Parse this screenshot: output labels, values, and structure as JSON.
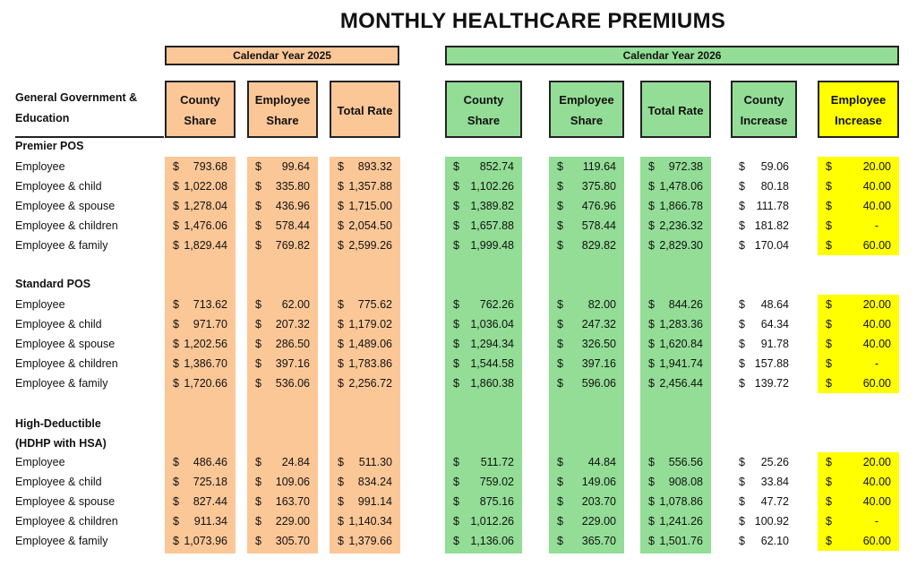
{
  "title": "MONTHLY HEALTHCARE PREMIUMS",
  "year_2025": "Calendar Year 2025",
  "year_2026": "Calendar Year 2026",
  "row_header": "General Government & Education",
  "columns": [
    "County Share",
    "Employee Share",
    "Total Rate",
    "County Share",
    "Employee Share",
    "Total Rate",
    "County Increase",
    "Employee Increase"
  ],
  "currency_symbol": "$",
  "colors": {
    "orange": "#fbc797",
    "green": "#93dd96",
    "yellow": "#ffff00"
  },
  "sections": [
    {
      "name": "Premier POS",
      "rows": [
        {
          "label": "Employee",
          "values": [
            "793.68",
            "99.64",
            "893.32",
            "852.74",
            "119.64",
            "972.38",
            "59.06",
            "20.00"
          ]
        },
        {
          "label": "Employee & child",
          "values": [
            "1,022.08",
            "335.80",
            "1,357.88",
            "1,102.26",
            "375.80",
            "1,478.06",
            "80.18",
            "40.00"
          ]
        },
        {
          "label": "Employee & spouse",
          "values": [
            "1,278.04",
            "436.96",
            "1,715.00",
            "1,389.82",
            "476.96",
            "1,866.78",
            "111.78",
            "40.00"
          ]
        },
        {
          "label": "Employee & children",
          "values": [
            "1,476.06",
            "578.44",
            "2,054.50",
            "1,657.88",
            "578.44",
            "2,236.32",
            "181.82",
            "-"
          ]
        },
        {
          "label": "Employee & family",
          "values": [
            "1,829.44",
            "769.82",
            "2,599.26",
            "1,999.48",
            "829.82",
            "2,829.30",
            "170.04",
            "60.00"
          ]
        }
      ]
    },
    {
      "name": "Standard POS",
      "rows": [
        {
          "label": "Employee",
          "values": [
            "713.62",
            "62.00",
            "775.62",
            "762.26",
            "82.00",
            "844.26",
            "48.64",
            "20.00"
          ]
        },
        {
          "label": "Employee & child",
          "values": [
            "971.70",
            "207.32",
            "1,179.02",
            "1,036.04",
            "247.32",
            "1,283.36",
            "64.34",
            "40.00"
          ]
        },
        {
          "label": "Employee & spouse",
          "values": [
            "1,202.56",
            "286.50",
            "1,489.06",
            "1,294.34",
            "326.50",
            "1,620.84",
            "91.78",
            "40.00"
          ]
        },
        {
          "label": "Employee & children",
          "values": [
            "1,386.70",
            "397.16",
            "1,783.86",
            "1,544.58",
            "397.16",
            "1,941.74",
            "157.88",
            "-"
          ]
        },
        {
          "label": "Employee & family",
          "values": [
            "1,720.66",
            "536.06",
            "2,256.72",
            "1,860.38",
            "596.06",
            "2,456.44",
            "139.72",
            "60.00"
          ]
        }
      ]
    },
    {
      "name": "High-Deductible (HDHP with HSA)",
      "rows": [
        {
          "label": "Employee",
          "values": [
            "486.46",
            "24.84",
            "511.30",
            "511.72",
            "44.84",
            "556.56",
            "25.26",
            "20.00"
          ]
        },
        {
          "label": "Employee & child",
          "values": [
            "725.18",
            "109.06",
            "834.24",
            "759.02",
            "149.06",
            "908.08",
            "33.84",
            "40.00"
          ]
        },
        {
          "label": "Employee & spouse",
          "values": [
            "827.44",
            "163.70",
            "991.14",
            "875.16",
            "203.70",
            "1,078.86",
            "47.72",
            "40.00"
          ]
        },
        {
          "label": "Employee & children",
          "values": [
            "911.34",
            "229.00",
            "1,140.34",
            "1,012.26",
            "229.00",
            "1,241.26",
            "100.92",
            "-"
          ]
        },
        {
          "label": "Employee & family",
          "values": [
            "1,073.96",
            "305.70",
            "1,379.66",
            "1,136.06",
            "365.70",
            "1,501.76",
            "62.10",
            "60.00"
          ]
        }
      ]
    }
  ]
}
